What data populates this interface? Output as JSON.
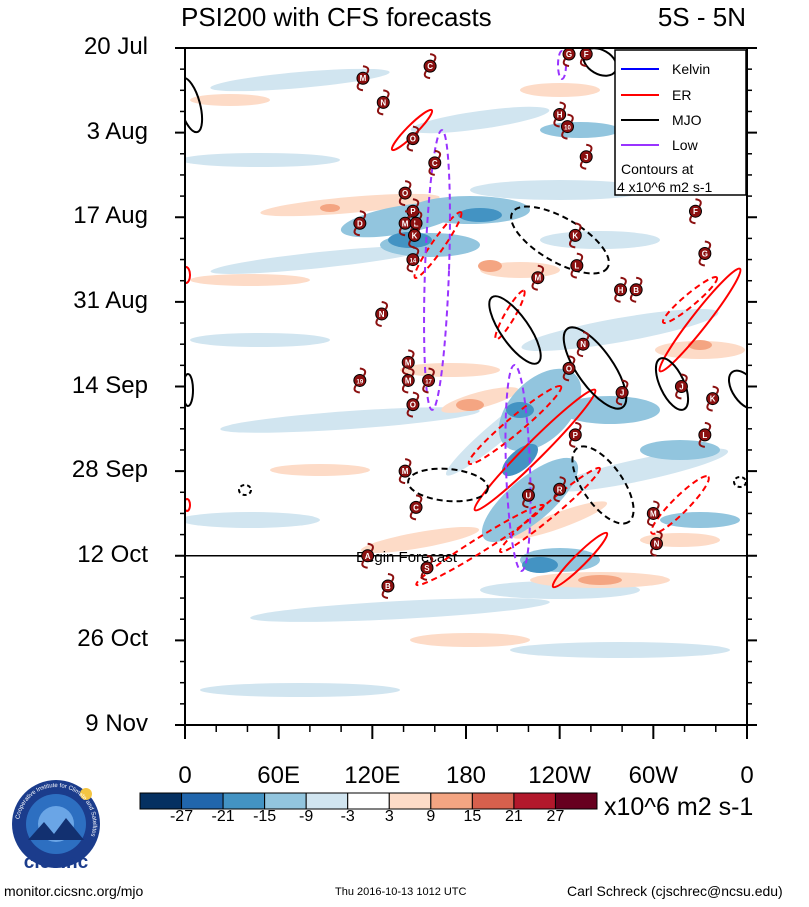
{
  "chart_data": {
    "type": "heatmap",
    "title": "PSI200 with CFS forecasts",
    "region": "5S - 5N",
    "y_tick_labels": [
      "20 Jul",
      "3 Aug",
      "17 Aug",
      "31 Aug",
      "14 Sep",
      "28 Sep",
      "12 Oct",
      "26 Oct",
      "9 Nov"
    ],
    "x_tick_labels": [
      "0",
      "60E",
      "120E",
      "180",
      "120W",
      "60W",
      "0"
    ],
    "x_range_deg_east": [
      0,
      360
    ],
    "y_range_days_since_20Jul": [
      0,
      112
    ],
    "forecast_start": {
      "day": 84,
      "label": "Begin Forecast"
    },
    "colorbar": {
      "levels": [
        "-27",
        "-21",
        "-15",
        "-9",
        "-3",
        "3",
        "9",
        "15",
        "21",
        "27"
      ],
      "colors": [
        "#053061",
        "#2166ac",
        "#4393c3",
        "#92c5de",
        "#d1e5f0",
        "#ffffff",
        "#fddbc7",
        "#f4a582",
        "#d6604d",
        "#b2182b",
        "#67001f"
      ],
      "units": "x10^6 m2 s-1"
    },
    "legend": {
      "entries": [
        {
          "label": "Kelvin",
          "color": "#0000ff"
        },
        {
          "label": "ER",
          "color": "#ff0000"
        },
        {
          "label": "MJO",
          "color": "#000000"
        },
        {
          "label": "Low",
          "color": "#9933ff"
        }
      ],
      "note_line1": "Contours at",
      "note_line2": "4 x10^6 m2 s-1",
      "placement": "top-right"
    },
    "storms": [
      {
        "id": "G",
        "lon": 246,
        "day": 1
      },
      {
        "id": "F",
        "lon": 257,
        "day": 1
      },
      {
        "id": "C",
        "lon": 157,
        "day": 3
      },
      {
        "id": "M",
        "lon": 114,
        "day": 5
      },
      {
        "id": "N",
        "lon": 127,
        "day": 9
      },
      {
        "id": "H",
        "lon": 240,
        "day": 11
      },
      {
        "id": "10",
        "lon": 245,
        "day": 13
      },
      {
        "id": "O",
        "lon": 146,
        "day": 15
      },
      {
        "id": "J",
        "lon": 257,
        "day": 18
      },
      {
        "id": "C",
        "lon": 160,
        "day": 19
      },
      {
        "id": "O",
        "lon": 141,
        "day": 24
      },
      {
        "id": "P",
        "lon": 146,
        "day": 27
      },
      {
        "id": "F",
        "lon": 327,
        "day": 27
      },
      {
        "id": "D",
        "lon": 112,
        "day": 29
      },
      {
        "id": "M",
        "lon": 141,
        "day": 29
      },
      {
        "id": "L",
        "lon": 148,
        "day": 29
      },
      {
        "id": "K",
        "lon": 147,
        "day": 31
      },
      {
        "id": "K",
        "lon": 250,
        "day": 31
      },
      {
        "id": "G",
        "lon": 333,
        "day": 34
      },
      {
        "id": "14",
        "lon": 146,
        "day": 35
      },
      {
        "id": "L",
        "lon": 251,
        "day": 36
      },
      {
        "id": "M",
        "lon": 226,
        "day": 38
      },
      {
        "id": "H",
        "lon": 279,
        "day": 40
      },
      {
        "id": "B",
        "lon": 289,
        "day": 40
      },
      {
        "id": "N",
        "lon": 126,
        "day": 44
      },
      {
        "id": "N",
        "lon": 255,
        "day": 49
      },
      {
        "id": "M",
        "lon": 143,
        "day": 52
      },
      {
        "id": "O",
        "lon": 246,
        "day": 53
      },
      {
        "id": "19",
        "lon": 112,
        "day": 55
      },
      {
        "id": "M",
        "lon": 143,
        "day": 55
      },
      {
        "id": "17",
        "lon": 156,
        "day": 55
      },
      {
        "id": "J",
        "lon": 318,
        "day": 56
      },
      {
        "id": "J",
        "lon": 280,
        "day": 57
      },
      {
        "id": "K",
        "lon": 338,
        "day": 58
      },
      {
        "id": "O",
        "lon": 146,
        "day": 59
      },
      {
        "id": "L",
        "lon": 333,
        "day": 64
      },
      {
        "id": "P",
        "lon": 250,
        "day": 64
      },
      {
        "id": "M",
        "lon": 141,
        "day": 70
      },
      {
        "id": "R",
        "lon": 240,
        "day": 73
      },
      {
        "id": "U",
        "lon": 220,
        "day": 74
      },
      {
        "id": "C",
        "lon": 148,
        "day": 76
      },
      {
        "id": "M",
        "lon": 300,
        "day": 77
      },
      {
        "id": "N",
        "lon": 302,
        "day": 82
      },
      {
        "id": "A",
        "lon": 117,
        "day": 84
      },
      {
        "id": "S",
        "lon": 155,
        "day": 86
      },
      {
        "id": "B",
        "lon": 130,
        "day": 89
      }
    ]
  },
  "footer": {
    "site": "monitor.cicsnc.org/mjo",
    "timestamp": "Thu 2016-10-13 1012 UTC",
    "author": "Carl Schreck (cjschrec@ncsu.edu)",
    "logo_text": "cics.nc",
    "logo_ring_text": "Cooperative Institute for Climate and Satellites"
  }
}
